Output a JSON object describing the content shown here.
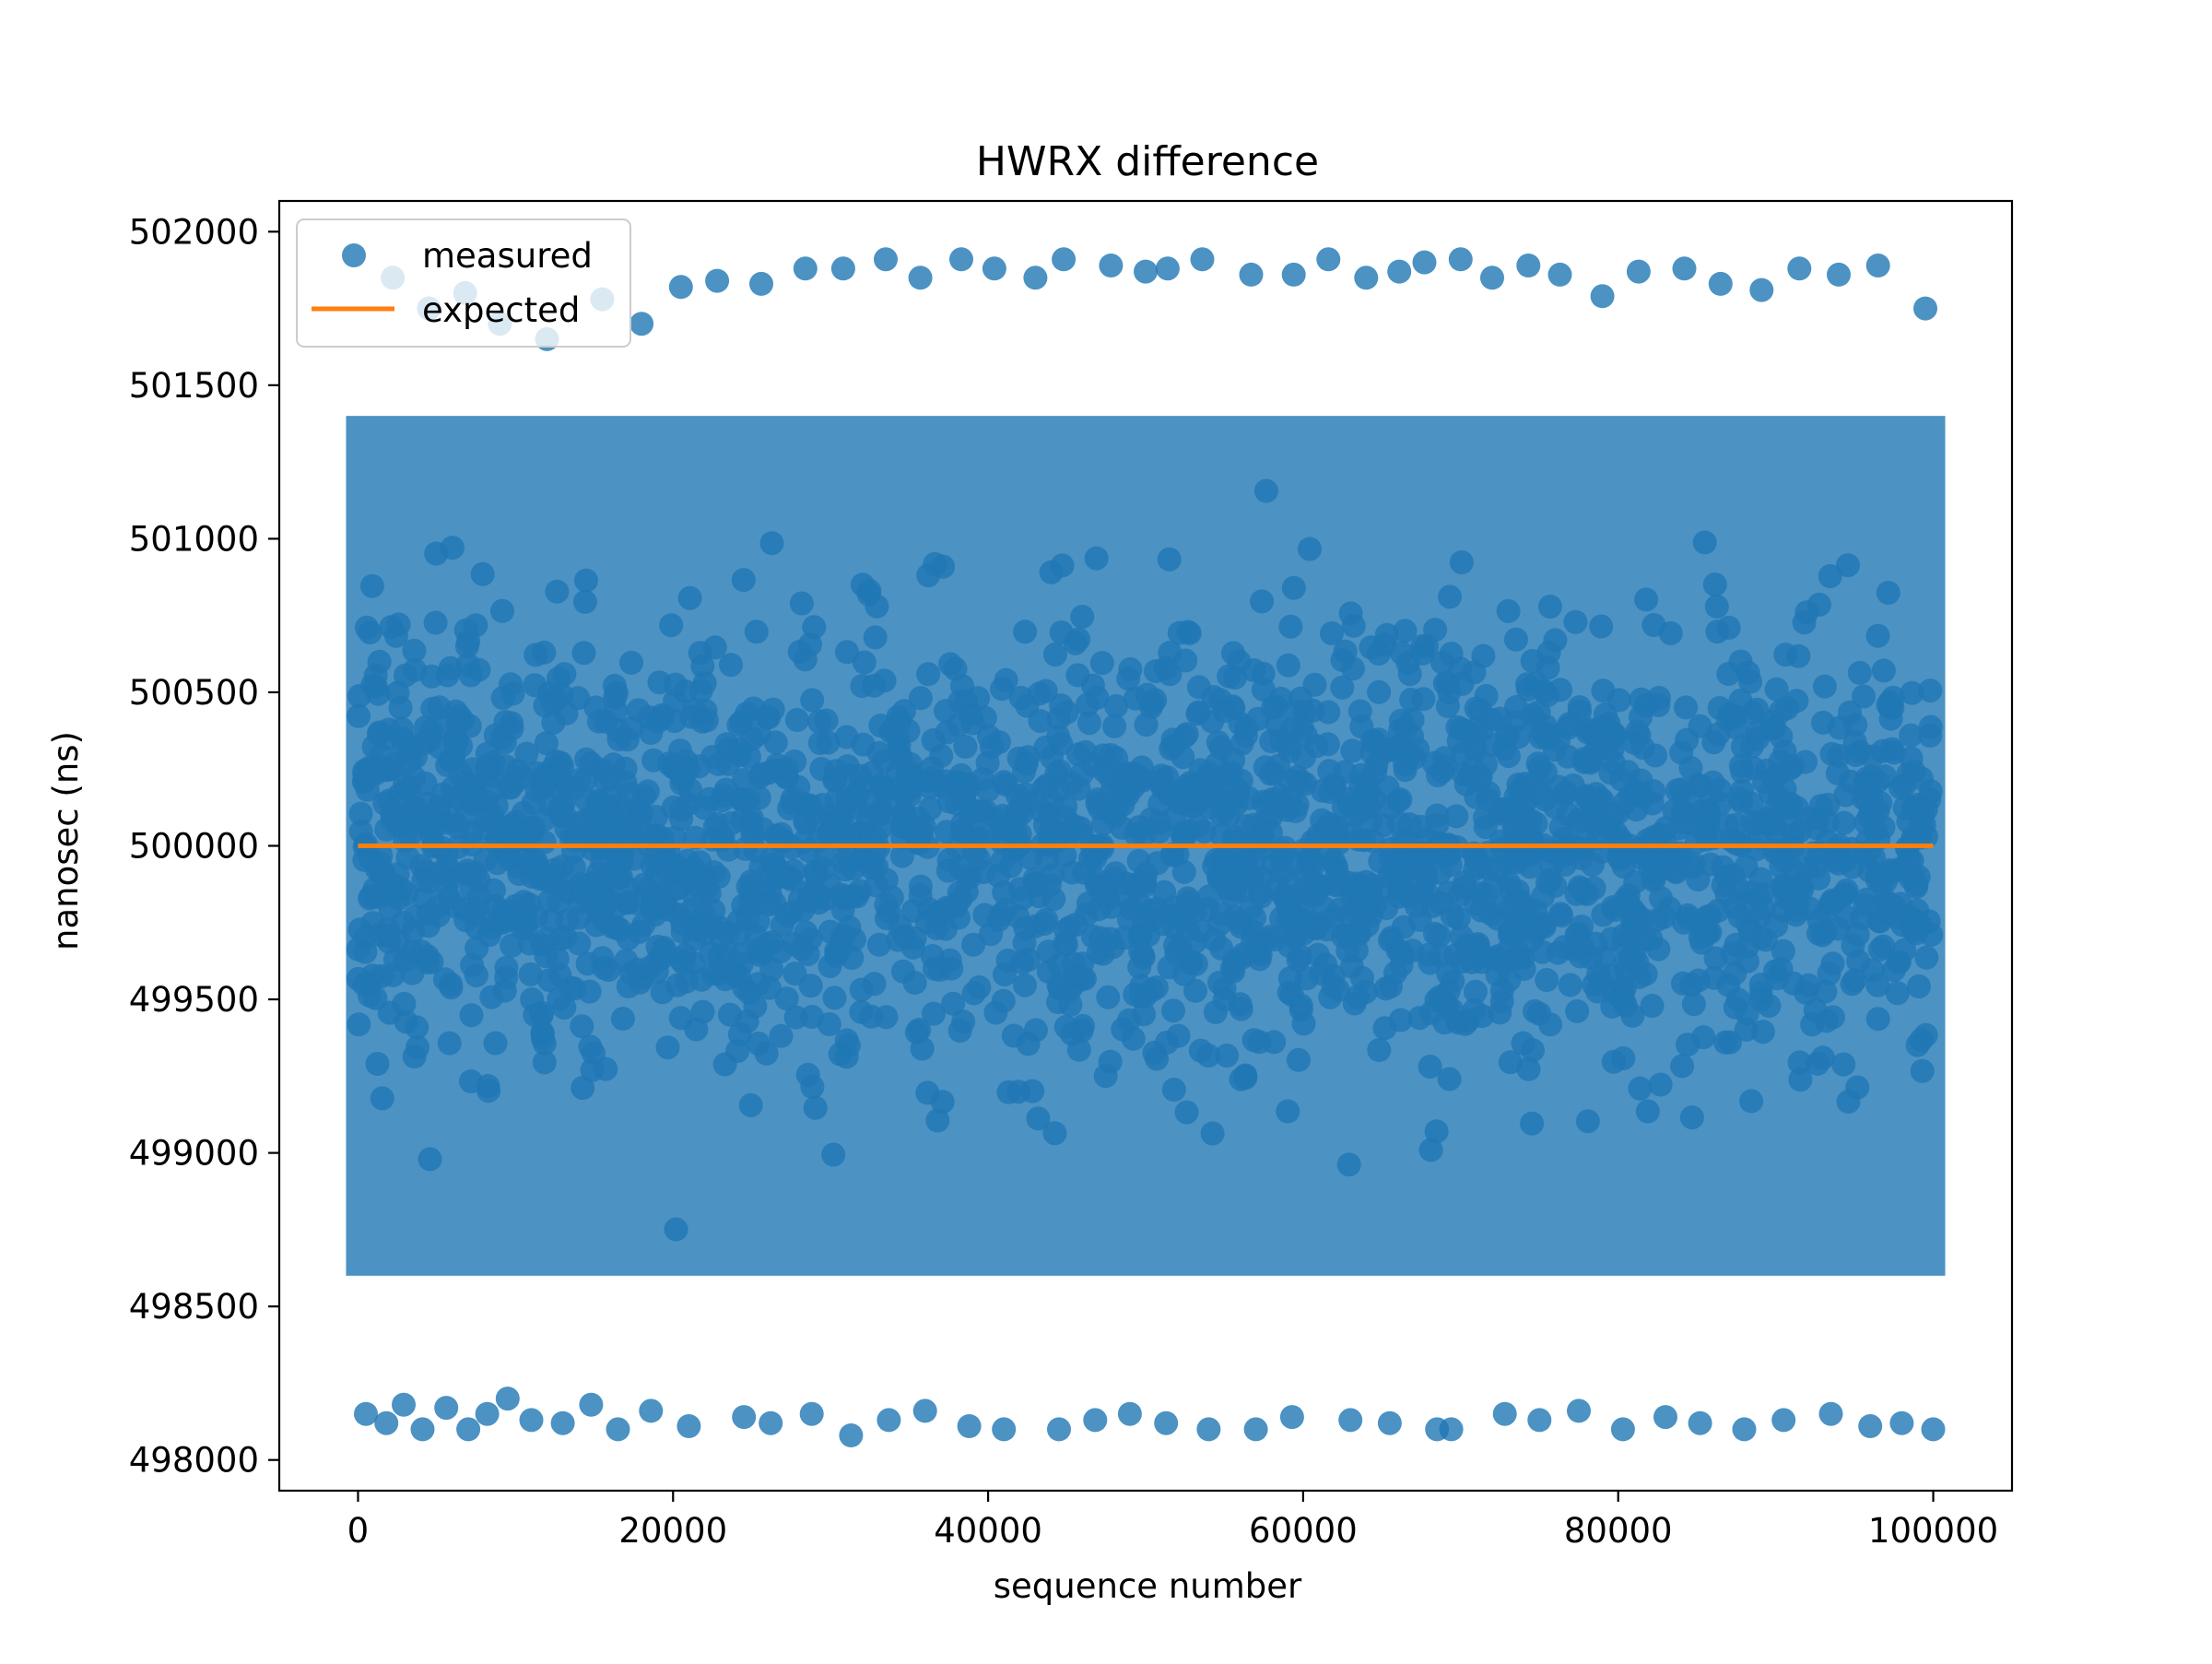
{
  "chart_data": {
    "type": "scatter",
    "title": "HWRX difference",
    "xlabel": "sequence number",
    "ylabel": "nanosec (ns)",
    "xlim": [
      -5000,
      105000
    ],
    "ylim": [
      497900,
      502100
    ],
    "xticks": [
      0,
      20000,
      40000,
      60000,
      80000,
      100000
    ],
    "yticks": [
      498000,
      498500,
      499000,
      499500,
      500000,
      500500,
      501000,
      501500,
      502000
    ],
    "legend_position": "top-left",
    "grid": false,
    "series": [
      {
        "name": "measured",
        "kind": "scatter",
        "color": "#1f77b4",
        "opacity": 0.8,
        "x_range": [
          0,
          100000
        ],
        "y_range": [
          498100,
          501900
        ],
        "core_y_range": [
          498600,
          501400
        ],
        "outliers": [
          [
            500,
            498150
          ],
          [
            1800,
            498120
          ],
          [
            2900,
            498180
          ],
          [
            4100,
            498100
          ],
          [
            5600,
            498170
          ],
          [
            7000,
            498100
          ],
          [
            8200,
            498150
          ],
          [
            9500,
            498200
          ],
          [
            11000,
            498130
          ],
          [
            13000,
            498120
          ],
          [
            14800,
            498180
          ],
          [
            16500,
            498100
          ],
          [
            18600,
            498160
          ],
          [
            21000,
            498110
          ],
          [
            24500,
            498140
          ],
          [
            26200,
            498120
          ],
          [
            28800,
            498150
          ],
          [
            31300,
            498080
          ],
          [
            33700,
            498130
          ],
          [
            36000,
            498160
          ],
          [
            38800,
            498110
          ],
          [
            41000,
            498100
          ],
          [
            44500,
            498100
          ],
          [
            46800,
            498130
          ],
          [
            49000,
            498150
          ],
          [
            51300,
            498120
          ],
          [
            54000,
            498100
          ],
          [
            57000,
            498100
          ],
          [
            59300,
            498140
          ],
          [
            63000,
            498130
          ],
          [
            65500,
            498120
          ],
          [
            68500,
            498100
          ],
          [
            69400,
            498100
          ],
          [
            72800,
            498150
          ],
          [
            75000,
            498130
          ],
          [
            77500,
            498160
          ],
          [
            80300,
            498100
          ],
          [
            83000,
            498140
          ],
          [
            85200,
            498120
          ],
          [
            88000,
            498100
          ],
          [
            90500,
            498130
          ],
          [
            93500,
            498150
          ],
          [
            96000,
            498110
          ],
          [
            98000,
            498120
          ],
          [
            100000,
            498100
          ],
          [
            2200,
            501850
          ],
          [
            4500,
            501750
          ],
          [
            6800,
            501800
          ],
          [
            9000,
            501700
          ],
          [
            12000,
            501650
          ],
          [
            15500,
            501780
          ],
          [
            18000,
            501700
          ],
          [
            20500,
            501820
          ],
          [
            22800,
            501840
          ],
          [
            25600,
            501830
          ],
          [
            28400,
            501880
          ],
          [
            30800,
            501880
          ],
          [
            33500,
            501910
          ],
          [
            35700,
            501850
          ],
          [
            38300,
            501910
          ],
          [
            40400,
            501880
          ],
          [
            43000,
            501850
          ],
          [
            44800,
            501910
          ],
          [
            47800,
            501890
          ],
          [
            50000,
            501870
          ],
          [
            51400,
            501880
          ],
          [
            53600,
            501910
          ],
          [
            56700,
            501860
          ],
          [
            59400,
            501860
          ],
          [
            61600,
            501910
          ],
          [
            64000,
            501850
          ],
          [
            66100,
            501870
          ],
          [
            67700,
            501900
          ],
          [
            70000,
            501910
          ],
          [
            72000,
            501850
          ],
          [
            74300,
            501890
          ],
          [
            76300,
            501860
          ],
          [
            79000,
            501790
          ],
          [
            81300,
            501870
          ],
          [
            84200,
            501880
          ],
          [
            86500,
            501830
          ],
          [
            89100,
            501810
          ],
          [
            91500,
            501880
          ],
          [
            94000,
            501860
          ],
          [
            96500,
            501890
          ],
          [
            99500,
            501750
          ]
        ]
      },
      {
        "name": "expected",
        "kind": "line",
        "color": "#ff7f0e",
        "x": [
          0,
          100000
        ],
        "y": [
          500000,
          500000
        ]
      }
    ]
  }
}
